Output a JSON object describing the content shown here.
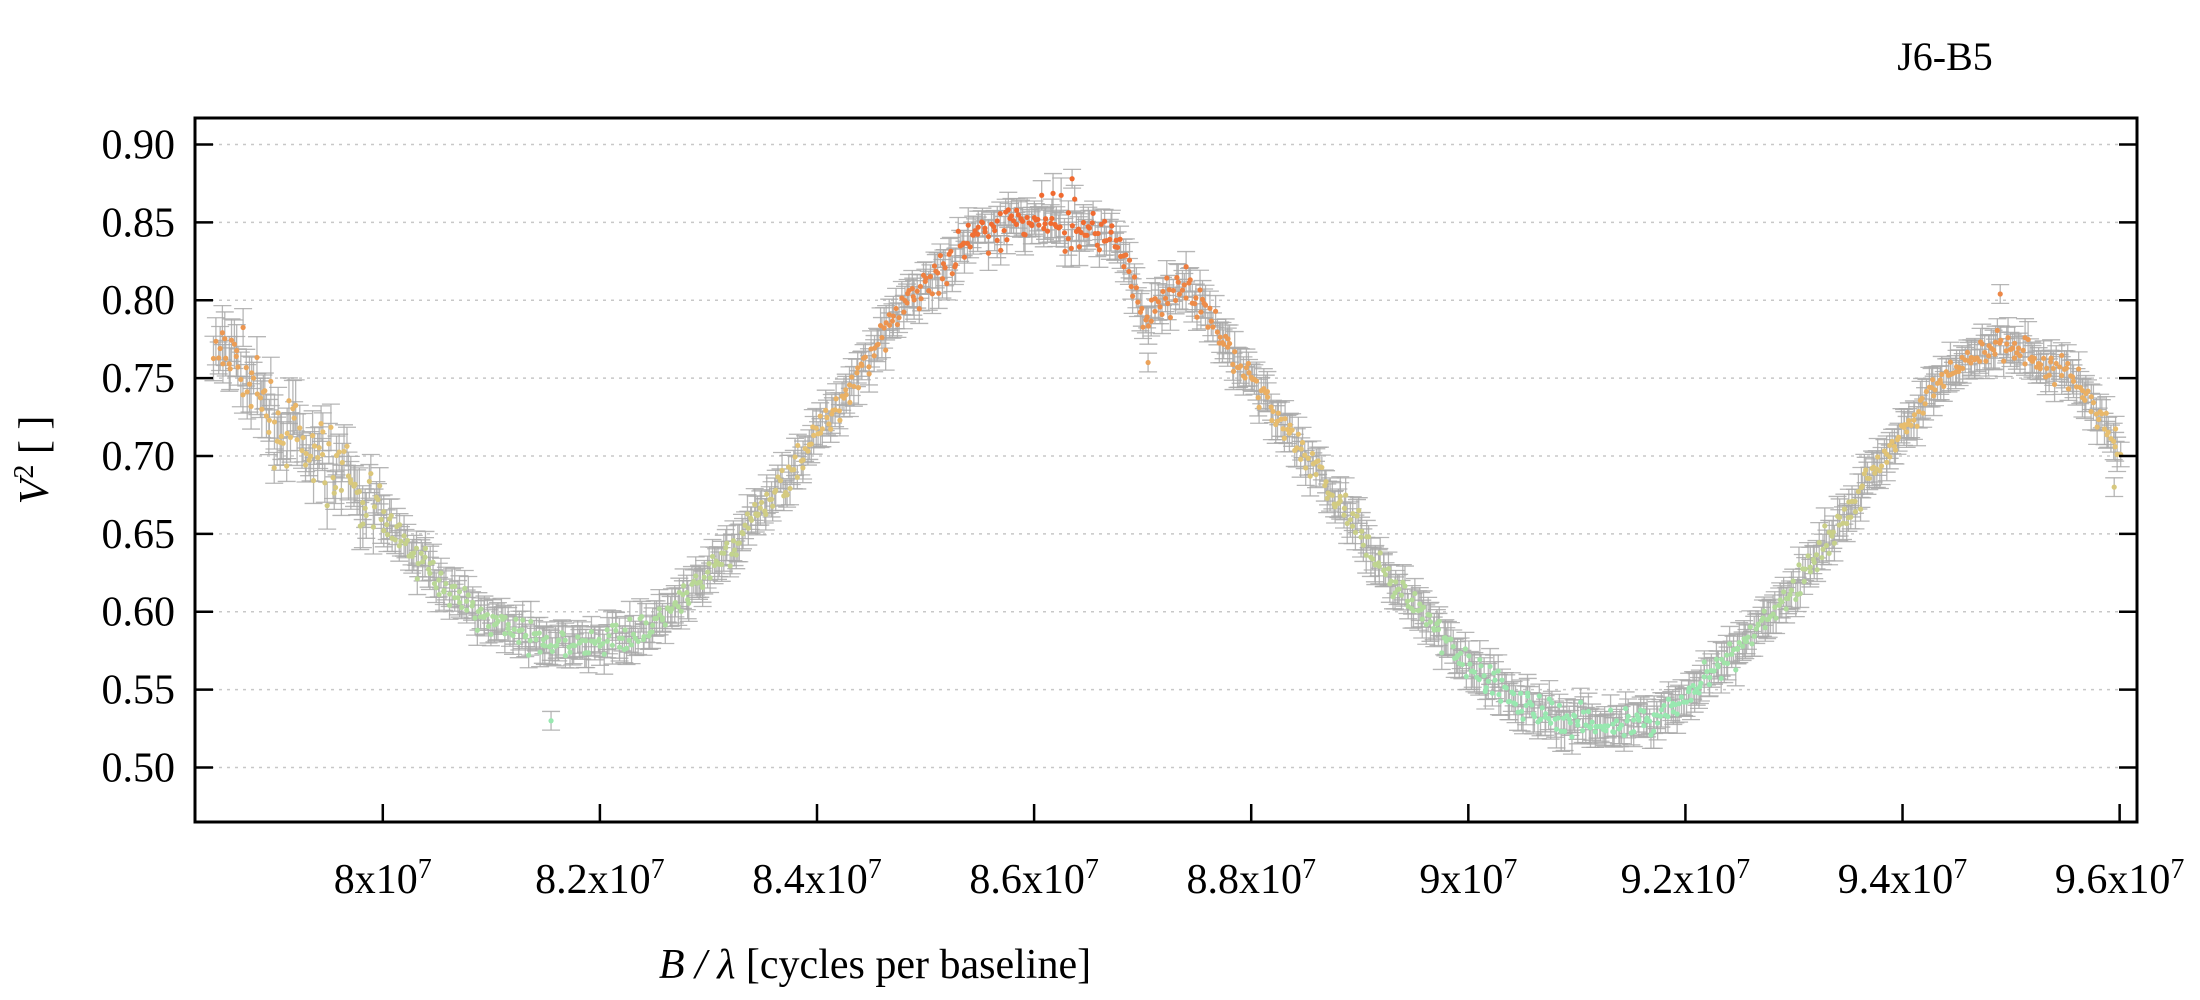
{
  "chart_data": {
    "type": "scatter",
    "title": "J6-B5",
    "xlabel": {
      "prefix": "B / λ",
      "suffix": " [cycles per baseline]"
    },
    "ylabel": {
      "base": "V",
      "sup": "2",
      "suffix": " [ ]"
    },
    "xlim": [
      78270000,
      96160000
    ],
    "ylim": [
      0.465,
      0.917
    ],
    "grid": true,
    "legend": "none",
    "xticks": [
      {
        "value": 80000000,
        "mant": "8x10",
        "exp": "7"
      },
      {
        "value": 82000000,
        "mant": "8.2x10",
        "exp": "7"
      },
      {
        "value": 84000000,
        "mant": "8.4x10",
        "exp": "7"
      },
      {
        "value": 86000000,
        "mant": "8.6x10",
        "exp": "7"
      },
      {
        "value": 88000000,
        "mant": "8.8x10",
        "exp": "7"
      },
      {
        "value": 90000000,
        "mant": "9x10",
        "exp": "7"
      },
      {
        "value": 92000000,
        "mant": "9.2x10",
        "exp": "7"
      },
      {
        "value": 94000000,
        "mant": "9.4x10",
        "exp": "7"
      },
      {
        "value": 96000000,
        "mant": "9.6x10",
        "exp": "7"
      }
    ],
    "yticks": [
      {
        "value": 0.5,
        "label": "0.50"
      },
      {
        "value": 0.55,
        "label": "0.55"
      },
      {
        "value": 0.6,
        "label": "0.60"
      },
      {
        "value": 0.65,
        "label": "0.65"
      },
      {
        "value": 0.7,
        "label": "0.70"
      },
      {
        "value": 0.75,
        "label": "0.75"
      },
      {
        "value": 0.8,
        "label": "0.80"
      },
      {
        "value": 0.85,
        "label": "0.85"
      },
      {
        "value": 0.9,
        "label": "0.90"
      }
    ],
    "color_scale": {
      "low": "#98e8b0",
      "mid": "#e8c070",
      "high": "#f06a30",
      "error_bar": "#aaaaaa"
    },
    "series": [
      {
        "error": 0.01,
        "points": [
          [
            78450000,
            0.76
          ],
          [
            78600000,
            0.77
          ],
          [
            78700000,
            0.76
          ],
          [
            78800000,
            0.74
          ],
          [
            78900000,
            0.73
          ],
          [
            79000000,
            0.72
          ],
          [
            79200000,
            0.71
          ],
          [
            79400000,
            0.7
          ],
          [
            79600000,
            0.69
          ],
          [
            79800000,
            0.675
          ],
          [
            80000000,
            0.66
          ],
          [
            80200000,
            0.645
          ],
          [
            80400000,
            0.63
          ],
          [
            80600000,
            0.615
          ],
          [
            80800000,
            0.605
          ],
          [
            81000000,
            0.595
          ],
          [
            81200000,
            0.588
          ],
          [
            81400000,
            0.582
          ],
          [
            81600000,
            0.578
          ],
          [
            81800000,
            0.578
          ],
          [
            82000000,
            0.58
          ],
          [
            82200000,
            0.585
          ],
          [
            82400000,
            0.59
          ],
          [
            82600000,
            0.598
          ],
          [
            82800000,
            0.61
          ],
          [
            83000000,
            0.625
          ],
          [
            83200000,
            0.64
          ],
          [
            83400000,
            0.658
          ],
          [
            83600000,
            0.675
          ],
          [
            83800000,
            0.695
          ],
          [
            84000000,
            0.715
          ],
          [
            84200000,
            0.735
          ],
          [
            84400000,
            0.755
          ],
          [
            84600000,
            0.775
          ],
          [
            84800000,
            0.795
          ],
          [
            85000000,
            0.812
          ],
          [
            85200000,
            0.825
          ],
          [
            85400000,
            0.836
          ],
          [
            85600000,
            0.845
          ],
          [
            85800000,
            0.85
          ],
          [
            86000000,
            0.852
          ],
          [
            86200000,
            0.85
          ],
          [
            86400000,
            0.847
          ],
          [
            86600000,
            0.845
          ],
          [
            86800000,
            0.835
          ],
          [
            87000000,
            0.79
          ],
          [
            87200000,
            0.8
          ],
          [
            87400000,
            0.808
          ],
          [
            87600000,
            0.79
          ],
          [
            87800000,
            0.77
          ],
          [
            88000000,
            0.75
          ],
          [
            88200000,
            0.73
          ],
          [
            88400000,
            0.71
          ],
          [
            88600000,
            0.69
          ],
          [
            88800000,
            0.67
          ],
          [
            89000000,
            0.65
          ],
          [
            89200000,
            0.63
          ],
          [
            89400000,
            0.612
          ],
          [
            89600000,
            0.595
          ],
          [
            89800000,
            0.58
          ],
          [
            90000000,
            0.567
          ],
          [
            90200000,
            0.555
          ],
          [
            90400000,
            0.545
          ],
          [
            90600000,
            0.538
          ],
          [
            90800000,
            0.533
          ],
          [
            91000000,
            0.53
          ],
          [
            91200000,
            0.528
          ],
          [
            91400000,
            0.527
          ],
          [
            91600000,
            0.528
          ],
          [
            91800000,
            0.535
          ],
          [
            92000000,
            0.545
          ],
          [
            92200000,
            0.556
          ],
          [
            92400000,
            0.568
          ],
          [
            92600000,
            0.582
          ],
          [
            92800000,
            0.598
          ],
          [
            93000000,
            0.615
          ],
          [
            93200000,
            0.635
          ],
          [
            93400000,
            0.655
          ],
          [
            93600000,
            0.675
          ],
          [
            93800000,
            0.695
          ],
          [
            94000000,
            0.715
          ],
          [
            94200000,
            0.735
          ],
          [
            94400000,
            0.752
          ],
          [
            94600000,
            0.762
          ],
          [
            94800000,
            0.768
          ],
          [
            95000000,
            0.772
          ],
          [
            95200000,
            0.765
          ],
          [
            95400000,
            0.758
          ],
          [
            95600000,
            0.748
          ],
          [
            95800000,
            0.725
          ],
          [
            95900000,
            0.715
          ],
          [
            96000000,
            0.7
          ]
        ],
        "outliers": [
          [
            81550000,
            0.53
          ],
          [
            86350000,
            0.878
          ],
          [
            94900000,
            0.804
          ],
          [
            95950000,
            0.68
          ],
          [
            87050000,
            0.76
          ]
        ]
      }
    ]
  }
}
